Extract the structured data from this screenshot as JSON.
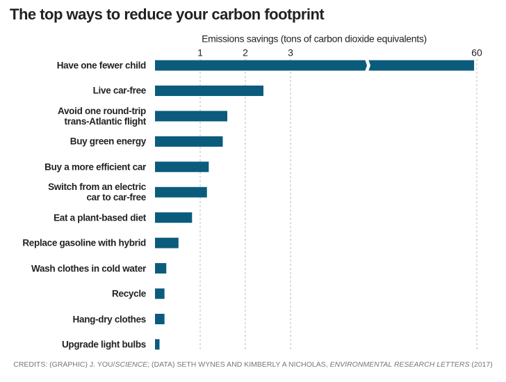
{
  "chart_data": {
    "type": "bar",
    "orientation": "horizontal",
    "title": "The top ways to reduce your carbon footprint",
    "x_label": "Emissions savings (tons of carbon dioxide equivalents)",
    "categories": [
      "Have one fewer child",
      "Live car-free",
      "Avoid one round-trip\ntrans-Atlantic flight",
      "Buy green energy",
      "Buy a more efficient car",
      "Switch from an electric\ncar to car-free",
      "Eat a plant-based diet",
      "Replace gasoline with hybrid",
      "Wash clothes in cold water",
      "Recycle",
      "Hang-dry clothes",
      "Upgrade light bulbs"
    ],
    "values": [
      58.6,
      2.4,
      1.6,
      1.5,
      1.19,
      1.15,
      0.82,
      0.52,
      0.25,
      0.21,
      0.21,
      0.1
    ],
    "color": "#0b5b7c",
    "xlim": [
      0,
      60
    ],
    "xticks": [
      1,
      2,
      3,
      60
    ],
    "axis_break": true,
    "grid": true,
    "credits": [
      "CREDITS: (GRAPHIC) J. YOU/",
      "SCIENCE",
      "; (DATA) SETH WYNES AND KIMBERLY A NICHOLAS, ",
      "ENVIRONMENTAL RESEARCH LETTERS",
      " (2017)"
    ]
  }
}
